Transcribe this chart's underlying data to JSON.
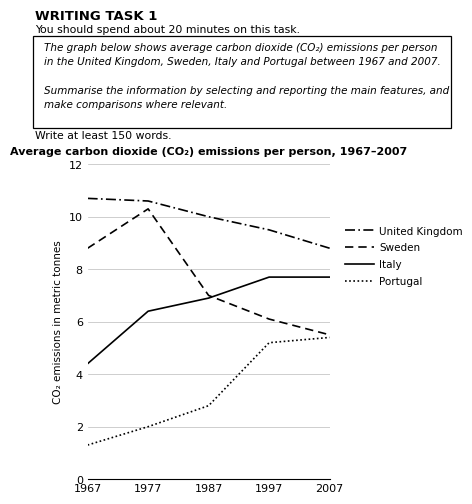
{
  "title": "Average carbon dioxide (CO₂) emissions per person, 1967–2007",
  "header_title": "WRITING TASK 1",
  "header_subtitle": "You should spend about 20 minutes on this task.",
  "box_line1": "The graph below shows average carbon dioxide (CO₂) emissions per person",
  "box_line2": "in the United Kingdom, Sweden, Italy and Portugal between 1967 and 2007.",
  "box_line3": "Summarise the information by selecting and reporting the main features, and",
  "box_line4": "make comparisons where relevant.",
  "footer_text": "Write at least 150 words.",
  "years": [
    1967,
    1977,
    1987,
    1997,
    2007
  ],
  "uk": [
    10.7,
    10.6,
    10.0,
    9.5,
    8.8
  ],
  "sweden": [
    8.8,
    10.3,
    7.0,
    6.1,
    5.5
  ],
  "italy": [
    4.4,
    6.4,
    6.9,
    7.7,
    7.7
  ],
  "portugal": [
    1.3,
    2.0,
    2.8,
    5.2,
    5.4
  ],
  "ylabel": "CO₂ emissions in metric tonnes",
  "ylim": [
    0,
    12
  ],
  "yticks": [
    0,
    2,
    4,
    6,
    8,
    10,
    12
  ],
  "xticks": [
    1967,
    1977,
    1987,
    1997,
    2007
  ],
  "legend_labels": [
    "United Kingdom",
    "Sweden",
    "Italy",
    "Portugal"
  ],
  "bg_color": "#ffffff",
  "line_color": "#000000",
  "grid_color": "#bbbbbb"
}
